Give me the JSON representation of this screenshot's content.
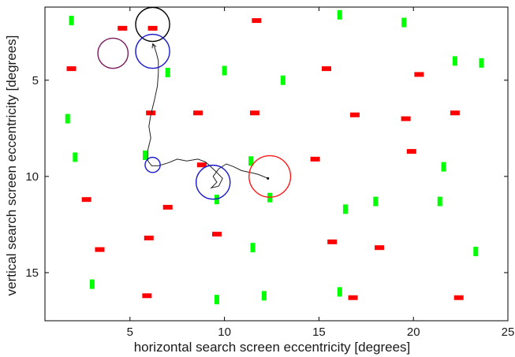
{
  "chart_data": {
    "type": "scatter",
    "xlabel": "horizontal search screen eccentricity [degrees]",
    "ylabel": "vertical search screen eccentricity [degrees]",
    "xlim": [
      0.5,
      25
    ],
    "ylim": [
      1.2,
      17.5
    ],
    "y_inverted": true,
    "x_ticks": [
      5,
      10,
      15,
      20,
      25
    ],
    "y_ticks": [
      5,
      10,
      15
    ],
    "x_tick_labels": [
      "5",
      "10",
      "15",
      "20",
      "25"
    ],
    "y_tick_labels": [
      "5",
      "10",
      "15"
    ],
    "grid": false,
    "colors": {
      "distractor_red": "#ff0000",
      "distractor_green": "#00ff00",
      "fixation_blue": "#1a1acc",
      "fixation_red": "#ff1a1a",
      "fixation_black": "#000000",
      "fixation_purple": "#7a1a5a",
      "scanpath": "#222222"
    },
    "series": [
      {
        "marker": "horizontal-bar",
        "color": "red",
        "points": [
          [
            6.2,
            2.3
          ],
          [
            4.6,
            2.3
          ],
          [
            11.7,
            1.9
          ],
          [
            1.9,
            4.4
          ],
          [
            15.4,
            4.4
          ],
          [
            20.3,
            4.7
          ],
          [
            6.1,
            6.7
          ],
          [
            8.6,
            6.7
          ],
          [
            11.6,
            6.7
          ],
          [
            16.9,
            6.8
          ],
          [
            19.6,
            7.0
          ],
          [
            22.2,
            6.7
          ],
          [
            19.9,
            8.7
          ],
          [
            14.8,
            9.1
          ],
          [
            8.8,
            9.4
          ],
          [
            2.7,
            11.2
          ],
          [
            7.0,
            11.6
          ],
          [
            6.0,
            13.2
          ],
          [
            9.6,
            13.0
          ],
          [
            15.7,
            13.4
          ],
          [
            18.2,
            13.7
          ],
          [
            3.4,
            13.8
          ],
          [
            5.9,
            16.2
          ],
          [
            16.8,
            16.3
          ],
          [
            22.4,
            16.3
          ]
        ]
      },
      {
        "marker": "vertical-bar",
        "color": "green",
        "points": [
          [
            1.9,
            1.9
          ],
          [
            16.1,
            1.6
          ],
          [
            19.5,
            2.0
          ],
          [
            22.2,
            4.0
          ],
          [
            23.6,
            4.1
          ],
          [
            7.0,
            4.6
          ],
          [
            10.0,
            4.5
          ],
          [
            13.1,
            5.0
          ],
          [
            1.7,
            7.0
          ],
          [
            2.1,
            9.0
          ],
          [
            5.8,
            8.9
          ],
          [
            11.4,
            9.2
          ],
          [
            21.6,
            9.5
          ],
          [
            9.6,
            11.2
          ],
          [
            12.4,
            11.1
          ],
          [
            16.4,
            11.7
          ],
          [
            18.0,
            11.3
          ],
          [
            21.4,
            11.3
          ],
          [
            11.5,
            13.7
          ],
          [
            23.3,
            13.9
          ],
          [
            3.0,
            15.6
          ],
          [
            16.1,
            16.0
          ],
          [
            12.1,
            16.2
          ],
          [
            9.6,
            16.4
          ]
        ]
      }
    ],
    "fixations": [
      {
        "x": 6.2,
        "y": 2.1,
        "r": 0.9,
        "color": "black"
      },
      {
        "x": 6.2,
        "y": 3.5,
        "r": 0.9,
        "color": "blue"
      },
      {
        "x": 4.1,
        "y": 3.6,
        "r": 0.8,
        "color": "purple"
      },
      {
        "x": 6.2,
        "y": 9.4,
        "r": 0.4,
        "color": "blue"
      },
      {
        "x": 9.4,
        "y": 10.3,
        "r": 0.9,
        "color": "blue"
      },
      {
        "x": 12.4,
        "y": 10.0,
        "r": 1.1,
        "color": "red"
      }
    ],
    "scanpath": [
      [
        12.3,
        10.1
      ],
      [
        11.8,
        9.9
      ],
      [
        11.4,
        9.8
      ],
      [
        10.9,
        9.7
      ],
      [
        10.5,
        9.5
      ],
      [
        10.1,
        9.35
      ],
      [
        9.7,
        9.6
      ],
      [
        9.4,
        10.0
      ],
      [
        9.6,
        10.3
      ],
      [
        9.3,
        10.6
      ],
      [
        9.7,
        10.5
      ],
      [
        9.9,
        10.1
      ],
      [
        9.5,
        9.7
      ],
      [
        9.0,
        9.25
      ],
      [
        8.6,
        9.1
      ],
      [
        8.0,
        9.2
      ],
      [
        7.5,
        9.1
      ],
      [
        7.0,
        9.3
      ],
      [
        6.5,
        9.45
      ],
      [
        6.15,
        9.45
      ],
      [
        5.95,
        9.2
      ],
      [
        5.95,
        8.6
      ],
      [
        6.1,
        8.0
      ],
      [
        6.0,
        7.4
      ],
      [
        6.1,
        6.8
      ],
      [
        6.3,
        6.0
      ],
      [
        6.45,
        5.3
      ],
      [
        6.5,
        4.6
      ],
      [
        6.5,
        4.0
      ],
      [
        6.4,
        3.6
      ],
      [
        6.3,
        3.3
      ],
      [
        6.2,
        3.1
      ]
    ]
  }
}
